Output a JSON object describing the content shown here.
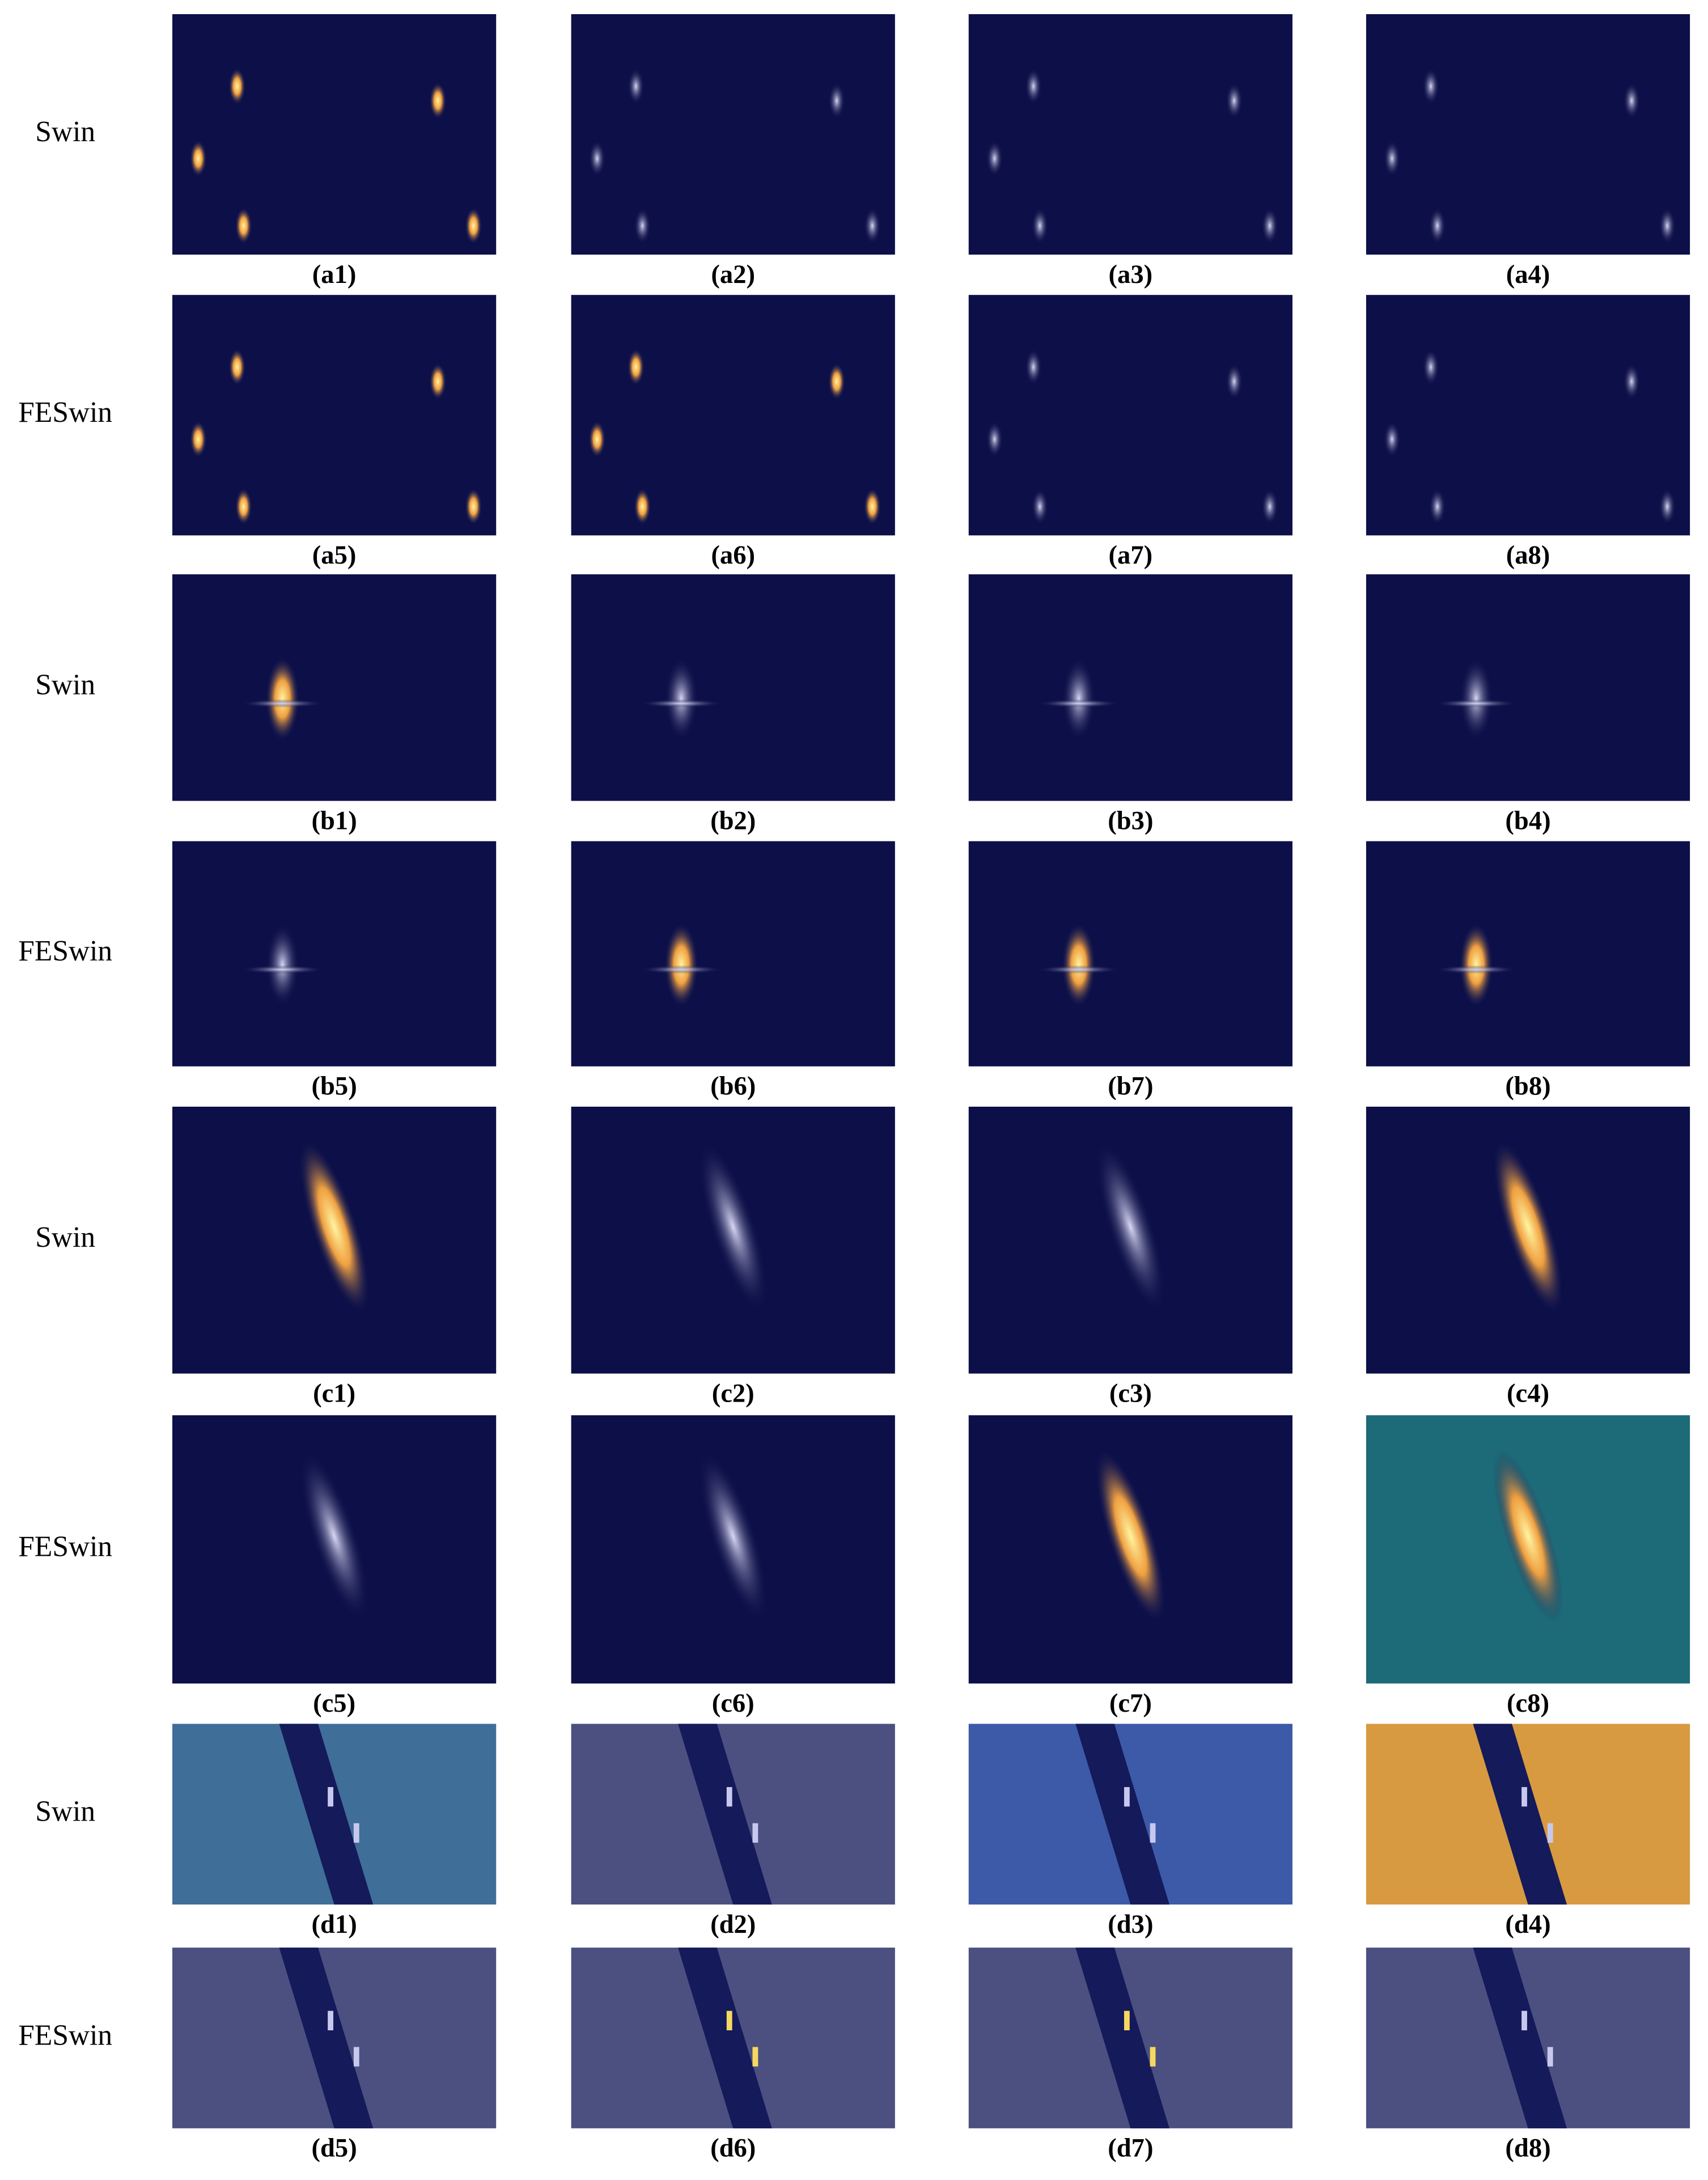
{
  "figure": {
    "rows": [
      {
        "label": "Swin",
        "captions": [
          "(a1)",
          "(a2)",
          "(a3)",
          "(a4)"
        ]
      },
      {
        "label": "FESwin",
        "captions": [
          "(a5)",
          "(a6)",
          "(a7)",
          "(a8)"
        ]
      },
      {
        "label": "Swin",
        "captions": [
          "(b1)",
          "(b2)",
          "(b3)",
          "(b4)"
        ]
      },
      {
        "label": "FESwin",
        "captions": [
          "(b5)",
          "(b6)",
          "(b7)",
          "(b8)"
        ]
      },
      {
        "label": "Swin",
        "captions": [
          "(c1)",
          "(c2)",
          "(c3)",
          "(c4)"
        ]
      },
      {
        "label": "FESwin",
        "captions": [
          "(c5)",
          "(c6)",
          "(c7)",
          "(c8)"
        ]
      },
      {
        "label": "Swin",
        "captions": [
          "(d1)",
          "(d2)",
          "(d3)",
          "(d4)"
        ]
      },
      {
        "label": "FESwin",
        "captions": [
          "(d5)",
          "(d6)",
          "(d7)",
          "(d8)"
        ]
      }
    ]
  }
}
